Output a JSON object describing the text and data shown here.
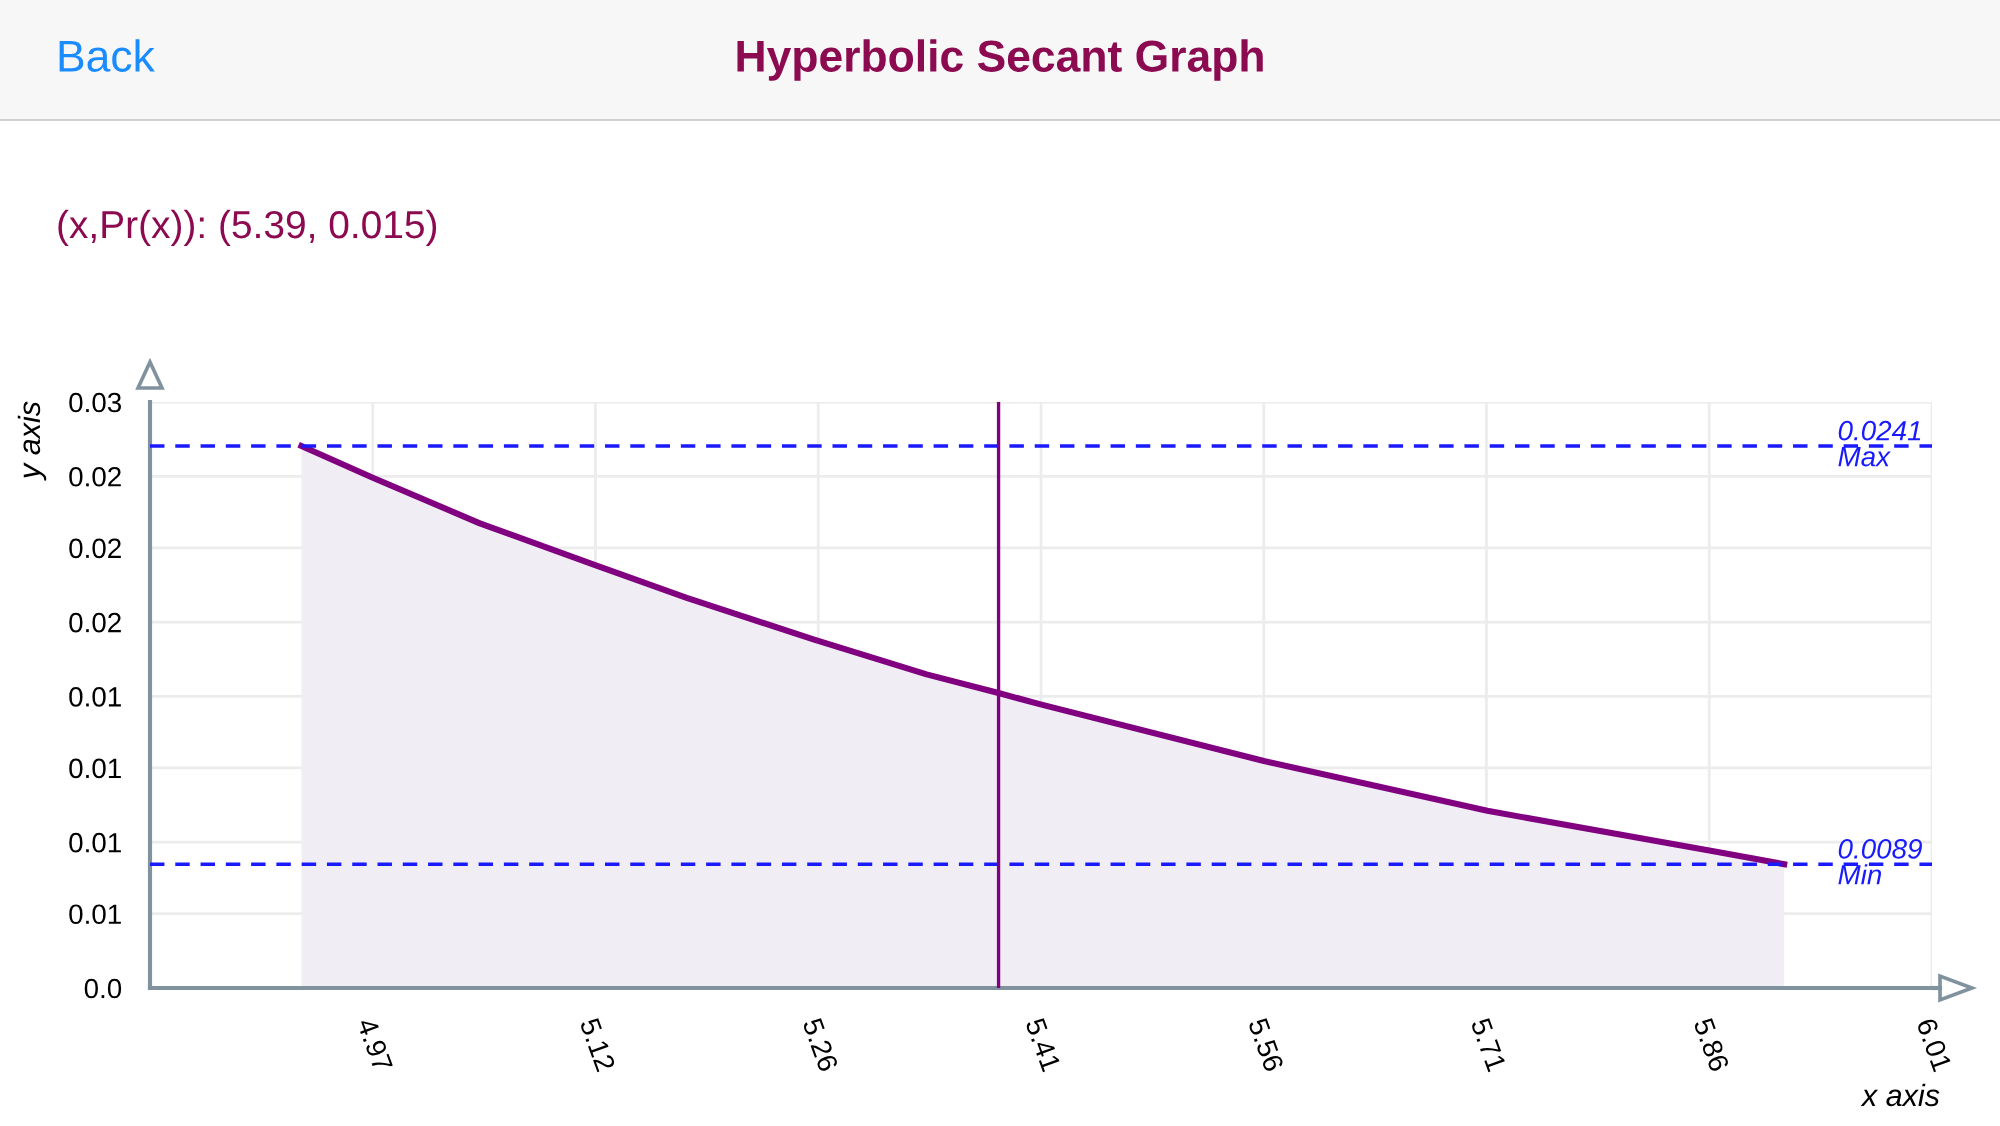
{
  "chart_data": {
    "type": "area",
    "title": "Hyperbolic Secant Graph",
    "subtitle": "(x,Pr(x)): (5.39, 0.015)",
    "annotations": [
      "Back"
    ],
    "xlabel": "x axis",
    "ylabel": "y axis",
    "series": [
      {
        "color": "#800080",
        "x": [
          4.92,
          4.968,
          5.039,
          5.115,
          5.177,
          5.262,
          5.337,
          5.385,
          5.413,
          5.562,
          5.711,
          5.86,
          5.909
        ],
        "values": [
          0.0241,
          0.02294,
          0.02129,
          0.01979,
          0.01858,
          0.01706,
          0.0158,
          0.01512,
          0.01471,
          0.01265,
          0.01084,
          0.00939,
          0.0089
        ]
      }
    ],
    "xlim": [
      4.819,
      6.0076
    ],
    "xticks": [
      {
        "value": 4.9676,
        "label": "4.97"
      },
      {
        "value": 5.1161,
        "label": "5.12"
      },
      {
        "value": 5.2647,
        "label": "5.26"
      },
      {
        "value": 5.4133,
        "label": "5.41"
      },
      {
        "value": 5.5619,
        "label": "5.56"
      },
      {
        "value": 5.7104,
        "label": "5.71"
      },
      {
        "value": 5.859,
        "label": "5.86"
      },
      {
        "value": 6.0076,
        "label": "6.01"
      }
    ],
    "ylim": [
      0.0044,
      0.0257
    ],
    "yticks": [
      {
        "value": 0.0044,
        "label": "0.0"
      },
      {
        "value": 0.0071,
        "label": "0.01"
      },
      {
        "value": 0.0097,
        "label": "0.01"
      },
      {
        "value": 0.0124,
        "label": "0.01"
      },
      {
        "value": 0.015,
        "label": "0.01"
      },
      {
        "value": 0.0177,
        "label": "0.02"
      },
      {
        "value": 0.0204,
        "label": "0.02"
      },
      {
        "value": 0.023,
        "label": "0.02"
      },
      {
        "value": 0.0257,
        "label": "0.03"
      }
    ],
    "ref_lines": [
      {
        "axis": "y",
        "value": 0.0241,
        "label": "0.0241\nMax",
        "color": "#1a1aff",
        "line_style": "dashed"
      },
      {
        "axis": "y",
        "value": 0.0089,
        "label": "0.0089\nMin",
        "color": "#1a1aff",
        "line_style": "dashed"
      },
      {
        "axis": "x",
        "value": 5.385,
        "color": "#800080",
        "line_style": "solid"
      }
    ],
    "grid": true,
    "marker": "none",
    "line_style": "solid"
  }
}
